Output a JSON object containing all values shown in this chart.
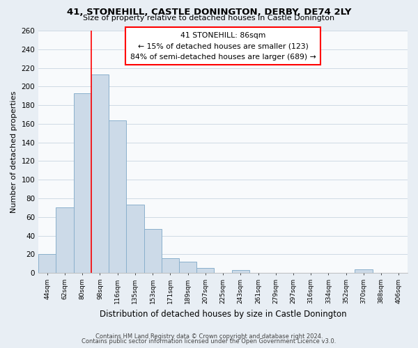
{
  "title": "41, STONEHILL, CASTLE DONINGTON, DERBY, DE74 2LY",
  "subtitle": "Size of property relative to detached houses in Castle Donington",
  "xlabel": "Distribution of detached houses by size in Castle Donington",
  "ylabel": "Number of detached properties",
  "bar_labels": [
    "44sqm",
    "62sqm",
    "80sqm",
    "98sqm",
    "116sqm",
    "135sqm",
    "153sqm",
    "171sqm",
    "189sqm",
    "207sqm",
    "225sqm",
    "243sqm",
    "261sqm",
    "279sqm",
    "297sqm",
    "316sqm",
    "334sqm",
    "352sqm",
    "370sqm",
    "388sqm",
    "406sqm"
  ],
  "bar_values": [
    20,
    70,
    193,
    213,
    164,
    73,
    47,
    16,
    12,
    5,
    0,
    3,
    0,
    0,
    0,
    0,
    0,
    0,
    4,
    0,
    0
  ],
  "bar_color": "#ccdae8",
  "bar_edge_color": "#8ab0cc",
  "ylim": [
    0,
    260
  ],
  "yticks": [
    0,
    20,
    40,
    60,
    80,
    100,
    120,
    140,
    160,
    180,
    200,
    220,
    240,
    260
  ],
  "property_line_idx": 3,
  "annotation_title": "41 STONEHILL: 86sqm",
  "annotation_line1": "← 15% of detached houses are smaller (123)",
  "annotation_line2": "84% of semi-detached houses are larger (689) →",
  "footer_line1": "Contains HM Land Registry data © Crown copyright and database right 2024.",
  "footer_line2": "Contains public sector information licensed under the Open Government Licence v3.0.",
  "background_color": "#e8eef4",
  "plot_background": "#f8fafc",
  "grid_color": "#c8d4e0"
}
